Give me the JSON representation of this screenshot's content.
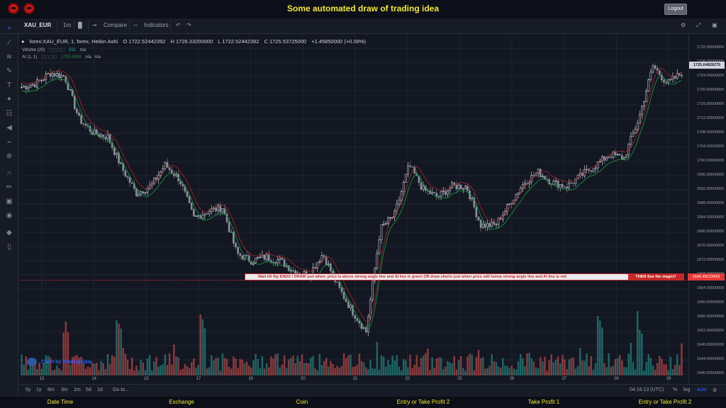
{
  "app": {
    "title": "Some automated draw of trading idea",
    "logout_label": "Logout"
  },
  "toolbar": {
    "symbol": "XAU_EUR",
    "interval": "1m",
    "compare_label": "Compare",
    "indicators_label": "Indicators"
  },
  "legend": {
    "title": "forex:XAU_EUR, 1, forex, Heikin Ashi",
    "open": "O 1722.52442392",
    "high": "H 1726.33200000",
    "low": "L 1722.52442392",
    "close": "C 1725.53725000",
    "change": "+1.45850000 (+0.08%)",
    "volume_label": "Volume (20)",
    "volume_value": "911",
    "volume_ma": "n/a",
    "ai_label": "AI (1, 1)",
    "ai_value": "1725.9306",
    "ai_na1": "n/a",
    "ai_na2": "n/a"
  },
  "price_scale": {
    "ticks": [
      "1732.00000000",
      "1728.00000000",
      "1724.00000000",
      "1720.00000000",
      "1716.00000000",
      "1712.00000000",
      "1708.00000000",
      "1704.00000000",
      "1700.00000000",
      "1696.00000000",
      "1692.00000000",
      "1688.00000000",
      "1684.00000000",
      "1680.00000000",
      "1676.00000000",
      "1672.00000000",
      "1668.00000000",
      "1664.00000000",
      "1660.00000000",
      "1656.00000000",
      "1652.00000000",
      "1648.00000000",
      "1644.00000000",
      "1640.00000000"
    ],
    "last_price": "1725.64826275",
    "line_price": "1666.48123433"
  },
  "time_scale": {
    "labels": [
      "13",
      "14",
      "15",
      "17",
      "19",
      "20",
      "21",
      "22",
      "25",
      "26",
      "27",
      "28",
      "29"
    ]
  },
  "banner": {
    "message": "Wait till flip ENDS  !   DRAW just when:  price is above strong angle line and AI line is green          OR          draw shorts just when price still below strong angle line and AI line is red",
    "magic": "THEN See the magic!!"
  },
  "branding": {
    "tv_label": "Chart by TradingView"
  },
  "bottom": {
    "ranges": [
      "5y",
      "1y",
      "6m",
      "3m",
      "1m",
      "5d",
      "1d"
    ],
    "goto": "Go to...",
    "clock": "04:16:13 (UTC)",
    "percent": "%",
    "log": "log",
    "auto": "auto"
  },
  "footer": {
    "items": [
      "Date Time",
      "Exchange",
      "Coin",
      "Entry or Take Profit 2",
      "Take Profit 1",
      "Entry or Take Profit 2"
    ]
  },
  "chart_data": {
    "type": "candlestick",
    "symbol": "XAU_EUR",
    "ylim": [
      1640,
      1734
    ],
    "x_labels": [
      "13",
      "14",
      "15",
      "17",
      "19",
      "20",
      "21",
      "22",
      "25",
      "26",
      "27",
      "28",
      "29"
    ],
    "close_path": [
      [
        0,
        1721
      ],
      [
        1,
        1722
      ],
      [
        2,
        1725
      ],
      [
        3,
        1724
      ],
      [
        4,
        1712
      ],
      [
        5,
        1708
      ],
      [
        6,
        1707
      ],
      [
        7,
        1698
      ],
      [
        8,
        1691
      ],
      [
        9,
        1693
      ],
      [
        10,
        1699
      ],
      [
        11,
        1695
      ],
      [
        12,
        1684
      ],
      [
        13,
        1686
      ],
      [
        14,
        1687
      ],
      [
        15,
        1674
      ],
      [
        16,
        1672
      ],
      [
        17,
        1673
      ],
      [
        18,
        1672
      ],
      [
        19,
        1669
      ],
      [
        20,
        1668
      ],
      [
        21,
        1674
      ],
      [
        22,
        1665
      ],
      [
        23,
        1658
      ],
      [
        24,
        1652
      ],
      [
        25,
        1681
      ],
      [
        26,
        1685
      ],
      [
        27,
        1699
      ],
      [
        28,
        1692
      ],
      [
        29,
        1690
      ],
      [
        30,
        1693
      ],
      [
        31,
        1693
      ],
      [
        32,
        1682
      ],
      [
        33,
        1682
      ],
      [
        34,
        1688
      ],
      [
        35,
        1694
      ],
      [
        36,
        1697
      ],
      [
        37,
        1694
      ],
      [
        38,
        1693
      ],
      [
        39,
        1696
      ],
      [
        40,
        1699
      ],
      [
        41,
        1702
      ],
      [
        42,
        1701
      ],
      [
        43,
        1712
      ],
      [
        44,
        1727
      ],
      [
        45,
        1722
      ],
      [
        46,
        1725
      ]
    ],
    "candle_count": 300,
    "volume_spikes_index": [
      67,
      140,
      260,
      820,
      875
    ],
    "indicator_lines": [
      {
        "name": "AI (1, 1)",
        "color": "#c62828"
      },
      {
        "color": "#1b8f3a"
      }
    ],
    "horizontal_line": 1666.48123433,
    "colors": {
      "up": "#e0e3eb",
      "down": "#8a8f9c",
      "vol_up": "#26a69a",
      "vol_down": "#ef5350"
    }
  }
}
